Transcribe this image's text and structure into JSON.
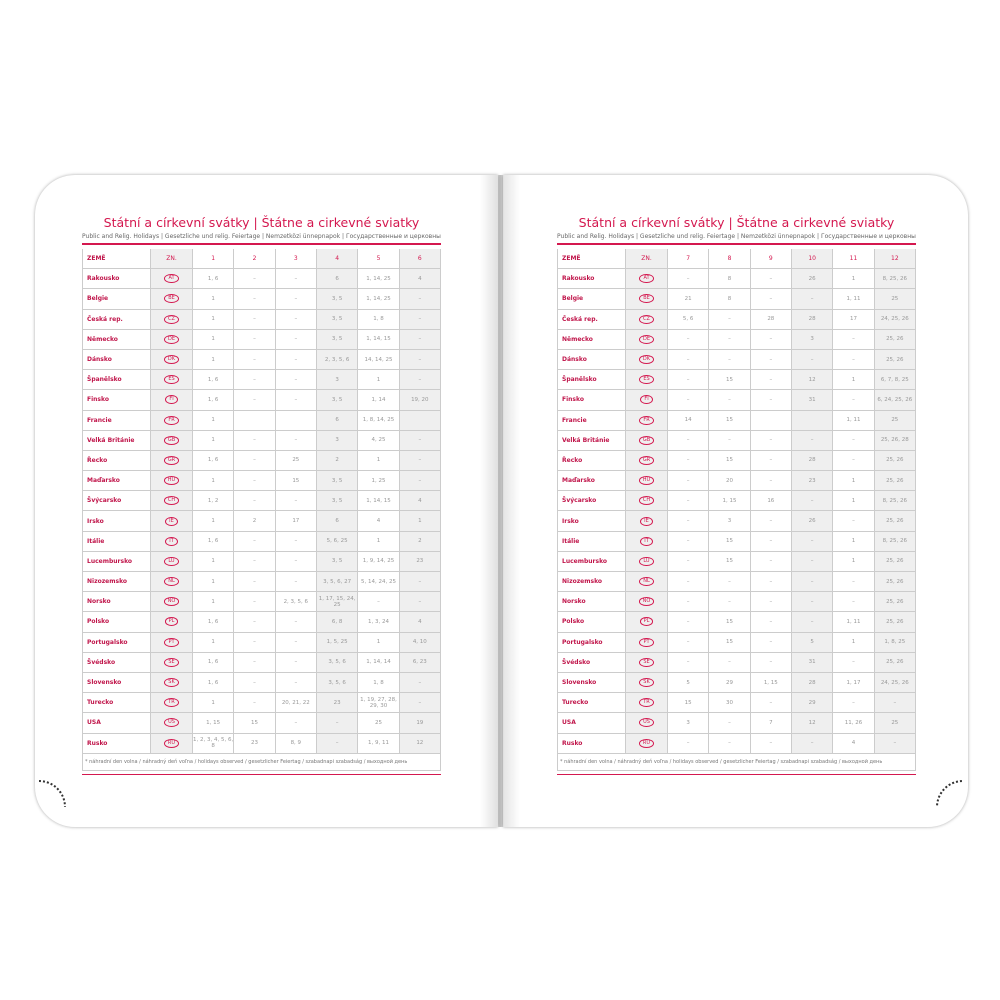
{
  "title": "Státní a církevní svátky | Štátne a cirkevné sviatky",
  "subtitle": "Public and Relig. Holidays | Gesetzliche und relig. Feiertage | Nemzetközi ünnepnapok | Государственные и церковные праздники",
  "col_country": "ZEMĚ",
  "col_code": "ZN.",
  "footnote": "* náhradní den volna / náhradný deň voľna / holidays observed / gesetzlicher Feiertag / szabadnapi szabadság / выходной день",
  "countries": [
    {
      "name": "Rakousko",
      "code": "AT"
    },
    {
      "name": "Belgie",
      "code": "BE"
    },
    {
      "name": "Česká rep.",
      "code": "CZ"
    },
    {
      "name": "Německo",
      "code": "DE"
    },
    {
      "name": "Dánsko",
      "code": "DK"
    },
    {
      "name": "Španělsko",
      "code": "ES"
    },
    {
      "name": "Finsko",
      "code": "FI"
    },
    {
      "name": "Francie",
      "code": "FR"
    },
    {
      "name": "Velká Británie",
      "code": "GB"
    },
    {
      "name": "Řecko",
      "code": "GR"
    },
    {
      "name": "Maďarsko",
      "code": "HU"
    },
    {
      "name": "Švýcarsko",
      "code": "CH"
    },
    {
      "name": "Irsko",
      "code": "IE"
    },
    {
      "name": "Itálie",
      "code": "IT"
    },
    {
      "name": "Lucembursko",
      "code": "LU"
    },
    {
      "name": "Nizozemsko",
      "code": "NL"
    },
    {
      "name": "Norsko",
      "code": "NO"
    },
    {
      "name": "Polsko",
      "code": "PL"
    },
    {
      "name": "Portugalsko",
      "code": "PT"
    },
    {
      "name": "Švédsko",
      "code": "SE"
    },
    {
      "name": "Slovensko",
      "code": "SK"
    },
    {
      "name": "Turecko",
      "code": "TR"
    },
    {
      "name": "USA",
      "code": "US"
    },
    {
      "name": "Rusko",
      "code": "RU"
    }
  ],
  "left": {
    "months": [
      "1",
      "2",
      "3",
      "4",
      "5",
      "6"
    ],
    "rows": [
      [
        "1, 6",
        "–",
        "–",
        "6",
        "1, 14, 25",
        "4"
      ],
      [
        "1",
        "–",
        "–",
        "3, 5",
        "1, 14, 25",
        "–"
      ],
      [
        "1",
        "–",
        "–",
        "3, 5",
        "1, 8",
        "–"
      ],
      [
        "1",
        "–",
        "–",
        "3, 5",
        "1, 14, 15",
        "–"
      ],
      [
        "1",
        "–",
        "–",
        "2, 3, 5, 6",
        "14, 14, 25",
        "–"
      ],
      [
        "1, 6",
        "–",
        "–",
        "3",
        "1",
        "–"
      ],
      [
        "1, 6",
        "–",
        "–",
        "3, 5",
        "1, 14",
        "19, 20"
      ],
      [
        "1",
        "",
        "",
        "6",
        "1, 8, 14, 25",
        ""
      ],
      [
        "1",
        "–",
        "–",
        "3",
        "4, 25",
        "–"
      ],
      [
        "1, 6",
        "–",
        "25",
        "2",
        "1",
        "–"
      ],
      [
        "1",
        "–",
        "15",
        "3, 5",
        "1, 25",
        "–"
      ],
      [
        "1, 2",
        "–",
        "–",
        "3, 5",
        "1, 14, 15",
        "4"
      ],
      [
        "1",
        "2",
        "17",
        "6",
        "4",
        "1"
      ],
      [
        "1, 6",
        "–",
        "–",
        "5, 6, 25",
        "1",
        "2"
      ],
      [
        "1",
        "–",
        "–",
        "3, 5",
        "1, 9, 14, 25",
        "23"
      ],
      [
        "1",
        "–",
        "–",
        "3, 5, 6, 27",
        "5, 14, 24, 25",
        "–"
      ],
      [
        "1",
        "–",
        "2, 3, 5, 6",
        "1, 17, 15, 24, 25",
        "–",
        "–"
      ],
      [
        "1, 6",
        "–",
        "–",
        "6, 8",
        "1, 3, 24",
        "4"
      ],
      [
        "1",
        "–",
        "–",
        "1, 5, 25",
        "1",
        "4, 10"
      ],
      [
        "1, 6",
        "–",
        "–",
        "3, 5, 6",
        "1, 14, 14",
        "6, 23"
      ],
      [
        "1, 6",
        "–",
        "–",
        "3, 5, 6",
        "1, 8",
        "–"
      ],
      [
        "1",
        "–",
        "20, 21, 22",
        "23",
        "1, 19, 27, 28, 29, 30",
        "–"
      ],
      [
        "1, 15",
        "15",
        "–",
        "–",
        "25",
        "19"
      ],
      [
        "1, 2, 3, 4, 5, 6, 8",
        "23",
        "8, 9",
        "–",
        "1, 9, 11",
        "12"
      ]
    ]
  },
  "right": {
    "months": [
      "7",
      "8",
      "9",
      "10",
      "11",
      "12"
    ],
    "rows": [
      [
        "–",
        "8",
        "–",
        "26",
        "1",
        "8, 25, 26"
      ],
      [
        "21",
        "8",
        "–",
        "–",
        "1, 11",
        "25"
      ],
      [
        "5, 6",
        "–",
        "28",
        "28",
        "17",
        "24, 25, 26"
      ],
      [
        "–",
        "–",
        "–",
        "3",
        "–",
        "25, 26"
      ],
      [
        "–",
        "–",
        "–",
        "–",
        "–",
        "25, 26"
      ],
      [
        "–",
        "15",
        "–",
        "12",
        "1",
        "6, 7, 8, 25"
      ],
      [
        "–",
        "–",
        "–",
        "31",
        "–",
        "6, 24, 25, 26"
      ],
      [
        "14",
        "15",
        "",
        "",
        "1, 11",
        "25"
      ],
      [
        "–",
        "–",
        "–",
        "–",
        "–",
        "25, 26, 28"
      ],
      [
        "–",
        "15",
        "–",
        "28",
        "–",
        "25, 26"
      ],
      [
        "–",
        "20",
        "–",
        "23",
        "1",
        "25, 26"
      ],
      [
        "–",
        "1, 15",
        "16",
        "–",
        "1",
        "8, 25, 26"
      ],
      [
        "–",
        "3",
        "–",
        "26",
        "–",
        "25, 26"
      ],
      [
        "–",
        "15",
        "–",
        "–",
        "1",
        "8, 25, 26"
      ],
      [
        "–",
        "15",
        "–",
        "–",
        "1",
        "25, 26"
      ],
      [
        "–",
        "–",
        "–",
        "–",
        "–",
        "25, 26"
      ],
      [
        "–",
        "–",
        "–",
        "–",
        "–",
        "25, 26"
      ],
      [
        "–",
        "15",
        "–",
        "–",
        "1, 11",
        "25, 26"
      ],
      [
        "–",
        "15",
        "–",
        "5",
        "1",
        "1, 8, 25"
      ],
      [
        "–",
        "–",
        "–",
        "31",
        "–",
        "25, 26"
      ],
      [
        "5",
        "29",
        "1, 15",
        "28",
        "1, 17",
        "24, 25, 26"
      ],
      [
        "15",
        "30",
        "–",
        "29",
        "–",
        "–"
      ],
      [
        "3",
        "–",
        "7",
        "12",
        "11, 26",
        "25"
      ],
      [
        "–",
        "–",
        "–",
        "–",
        "4",
        "–"
      ]
    ]
  },
  "colors": {
    "accent": "#d4184f"
  }
}
